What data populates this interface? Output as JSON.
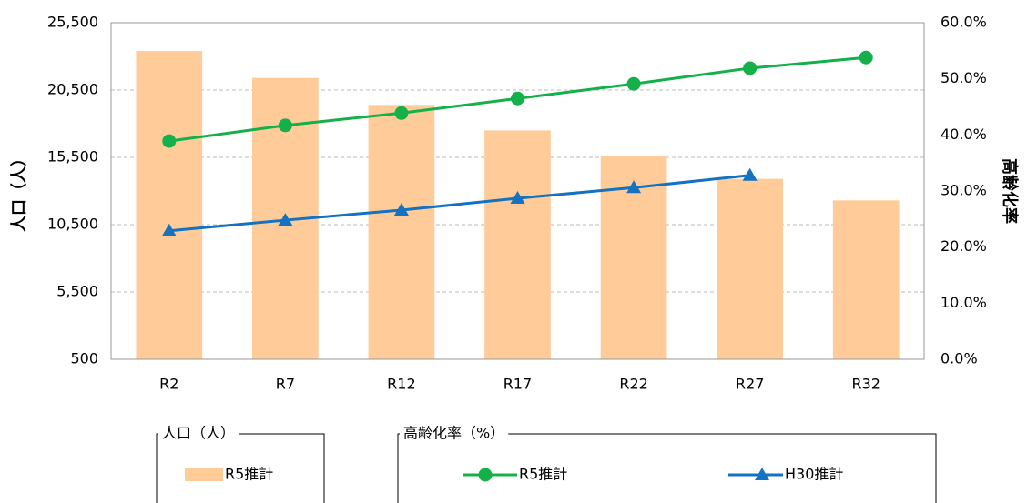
{
  "chart_data": {
    "type": "bar",
    "categories": [
      "R2",
      "R7",
      "R12",
      "R17",
      "R22",
      "R27",
      "R32"
    ],
    "ylabel": "人口（人）",
    "y2label": "高齢化率",
    "ylim": [
      500,
      25500
    ],
    "yticks": [
      {
        "value": 500,
        "label": "500"
      },
      {
        "value": 5500,
        "label": "5,500"
      },
      {
        "value": 10500,
        "label": "10,500"
      },
      {
        "value": 15500,
        "label": "15,500"
      },
      {
        "value": 20500,
        "label": "20,500"
      },
      {
        "value": 25500,
        "label": "25,500"
      }
    ],
    "y2lim": [
      0,
      60
    ],
    "y2ticks": [
      {
        "value": 0,
        "label": "0.0%"
      },
      {
        "value": 10,
        "label": "10.0%"
      },
      {
        "value": 20,
        "label": "20.0%"
      },
      {
        "value": 30,
        "label": "30.0%"
      },
      {
        "value": 40,
        "label": "40.0%"
      },
      {
        "value": 50,
        "label": "50.0%"
      },
      {
        "value": 60,
        "label": "60.0%"
      }
    ],
    "grid": true,
    "legend_groups": [
      "人口（人）",
      "高齢化率（%）"
    ],
    "series": [
      {
        "name": "R5推計",
        "type": "bar",
        "color": "#ffcc99",
        "legend_group": 0,
        "values": [
          23400,
          21400,
          19400,
          17500,
          15600,
          13900,
          12300
        ]
      },
      {
        "name": "R5推計",
        "type": "line",
        "marker": "circle",
        "axis": "y2",
        "color": "#14b04a",
        "legend_group": 1,
        "values": [
          38.9,
          41.7,
          43.9,
          46.5,
          49.1,
          51.9,
          53.8
        ]
      },
      {
        "name": "H30推計",
        "type": "line",
        "marker": "triangle",
        "axis": "y2",
        "color": "#1472c0",
        "legend_group": 1,
        "values": [
          22.9,
          24.8,
          26.6,
          28.7,
          30.6,
          32.8,
          null
        ]
      }
    ]
  }
}
